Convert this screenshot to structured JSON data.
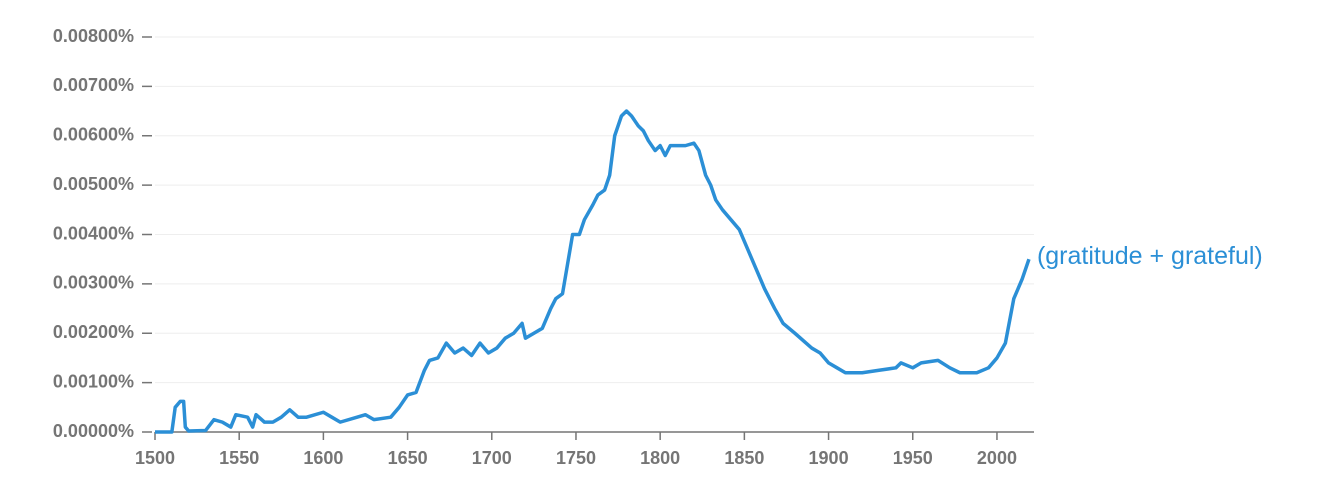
{
  "chart_data": {
    "type": "line",
    "x": [
      1500,
      1510,
      1512,
      1515,
      1517,
      1518,
      1520,
      1530,
      1535,
      1540,
      1545,
      1548,
      1555,
      1558,
      1560,
      1565,
      1570,
      1575,
      1580,
      1585,
      1590,
      1600,
      1605,
      1610,
      1620,
      1625,
      1630,
      1640,
      1645,
      1650,
      1655,
      1660,
      1663,
      1668,
      1673,
      1678,
      1683,
      1688,
      1693,
      1698,
      1703,
      1708,
      1713,
      1718,
      1720,
      1725,
      1730,
      1735,
      1738,
      1742,
      1745,
      1748,
      1752,
      1755,
      1760,
      1763,
      1767,
      1770,
      1773,
      1777,
      1780,
      1783,
      1787,
      1790,
      1793,
      1797,
      1800,
      1803,
      1806,
      1810,
      1815,
      1820,
      1823,
      1827,
      1830,
      1833,
      1837,
      1842,
      1847,
      1852,
      1857,
      1862,
      1868,
      1873,
      1880,
      1890,
      1895,
      1900,
      1905,
      1910,
      1915,
      1920,
      1930,
      1940,
      1943,
      1950,
      1955,
      1965,
      1972,
      1978,
      1988,
      1995,
      2000,
      2005,
      2010,
      2015,
      2019
    ],
    "series": [
      {
        "name": "(gratitude + grateful)",
        "color": "#2b8fd6",
        "values": [
          0,
          0,
          0.0005,
          0.00062,
          0.00062,
          0.0001,
          2e-05,
          3e-05,
          0.00025,
          0.0002,
          0.0001,
          0.00035,
          0.0003,
          0.0001,
          0.00035,
          0.0002,
          0.0002,
          0.0003,
          0.00045,
          0.0003,
          0.0003,
          0.0004,
          0.0003,
          0.0002,
          0.0003,
          0.00035,
          0.00025,
          0.0003,
          0.0005,
          0.00075,
          0.0008,
          0.00125,
          0.00145,
          0.0015,
          0.0018,
          0.0016,
          0.0017,
          0.00155,
          0.0018,
          0.0016,
          0.0017,
          0.0019,
          0.002,
          0.0022,
          0.0019,
          0.002,
          0.0021,
          0.0025,
          0.0027,
          0.0028,
          0.0034,
          0.004,
          0.004,
          0.0043,
          0.0046,
          0.0048,
          0.0049,
          0.0052,
          0.006,
          0.0064,
          0.0065,
          0.0064,
          0.0062,
          0.0061,
          0.0059,
          0.0057,
          0.0058,
          0.0056,
          0.0058,
          0.0058,
          0.0058,
          0.00585,
          0.0057,
          0.0052,
          0.005,
          0.0047,
          0.0045,
          0.0043,
          0.0041,
          0.0037,
          0.0033,
          0.0029,
          0.0025,
          0.0022,
          0.002,
          0.0017,
          0.0016,
          0.0014,
          0.0013,
          0.0012,
          0.0012,
          0.0012,
          0.00125,
          0.0013,
          0.0014,
          0.0013,
          0.0014,
          0.00145,
          0.0013,
          0.0012,
          0.0012,
          0.0013,
          0.0015,
          0.0018,
          0.0027,
          0.0031,
          0.0035
        ]
      }
    ],
    "xlim": [
      1500,
      2022
    ],
    "xticks": [
      1500,
      1550,
      1600,
      1650,
      1700,
      1750,
      1800,
      1850,
      1900,
      1950,
      2000
    ],
    "ylim": [
      0,
      0.008
    ],
    "yticks": [
      {
        "value": 0,
        "label": "0.00000%"
      },
      {
        "value": 0.001,
        "label": "0.00100%"
      },
      {
        "value": 0.002,
        "label": "0.00200%"
      },
      {
        "value": 0.003,
        "label": "0.00300%"
      },
      {
        "value": 0.004,
        "label": "0.00400%"
      },
      {
        "value": 0.005,
        "label": "0.00500%"
      },
      {
        "value": 0.006,
        "label": "0.00600%"
      },
      {
        "value": 0.007,
        "label": "0.00700%"
      },
      {
        "value": 0.008,
        "label": "0.00800%"
      }
    ],
    "grid": true
  }
}
